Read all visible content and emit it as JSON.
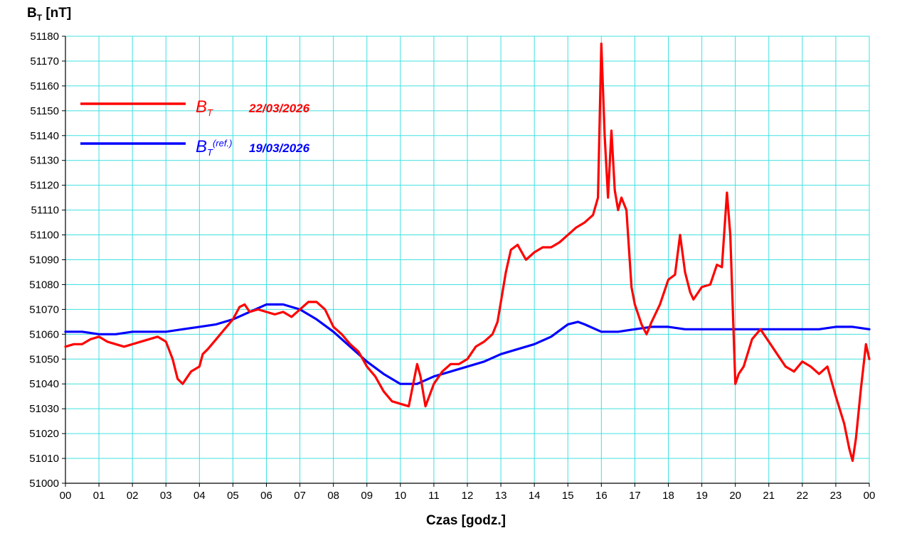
{
  "chart_data": {
    "type": "line",
    "ylabel": {
      "main": "B",
      "sub": "T",
      "unit": " [nT]"
    },
    "xlabel": "Czas [godz.]",
    "ylim": [
      51000,
      51180
    ],
    "yticks": [
      "51000",
      "51010",
      "51020",
      "51030",
      "51040",
      "51050",
      "51060",
      "51070",
      "51080",
      "51090",
      "51100",
      "51110",
      "51120",
      "51130",
      "51140",
      "51150",
      "51160",
      "51170",
      "51180"
    ],
    "xlim": [
      0,
      24
    ],
    "xticks": [
      "00",
      "01",
      "02",
      "03",
      "04",
      "05",
      "06",
      "07",
      "08",
      "09",
      "10",
      "11",
      "12",
      "13",
      "14",
      "15",
      "16",
      "17",
      "18",
      "19",
      "20",
      "21",
      "22",
      "23",
      "00"
    ],
    "grid": true,
    "grid_color": "#40E0E0",
    "legend_placement": "top-left",
    "series": [
      {
        "symbol": "B",
        "subscript": "T",
        "superscript": "",
        "date": "22/03/2026",
        "color": "#FF0000",
        "x": [
          0,
          0.25,
          0.5,
          0.75,
          1,
          1.25,
          1.5,
          1.75,
          2,
          2.25,
          2.5,
          2.75,
          3,
          3.2,
          3.35,
          3.5,
          3.6,
          3.75,
          4,
          4.1,
          4.25,
          4.5,
          4.75,
          5,
          5.2,
          5.35,
          5.5,
          5.75,
          6,
          6.25,
          6.5,
          6.75,
          7,
          7.25,
          7.5,
          7.75,
          8,
          8.25,
          8.5,
          8.75,
          9,
          9.25,
          9.5,
          9.75,
          10,
          10.25,
          10.5,
          10.6,
          10.75,
          11,
          11.25,
          11.5,
          11.75,
          12,
          12.25,
          12.5,
          12.75,
          12.9,
          13,
          13.15,
          13.3,
          13.5,
          13.75,
          14,
          14.25,
          14.5,
          14.75,
          15,
          15.25,
          15.5,
          15.75,
          15.9,
          16,
          16.1,
          16.2,
          16.3,
          16.4,
          16.5,
          16.6,
          16.75,
          16.9,
          17,
          17.1,
          17.2,
          17.35,
          17.5,
          17.75,
          18,
          18.2,
          18.35,
          18.5,
          18.65,
          18.75,
          19,
          19.25,
          19.45,
          19.6,
          19.75,
          19.85,
          19.95,
          20,
          20.1,
          20.25,
          20.5,
          20.75,
          21,
          21.25,
          21.5,
          21.75,
          22,
          22.25,
          22.5,
          22.75,
          23,
          23.25,
          23.4,
          23.5,
          23.6,
          23.75,
          23.9,
          24
        ],
        "values": [
          51055,
          51056,
          51056,
          51058,
          51059,
          51057,
          51056,
          51055,
          51056,
          51057,
          51058,
          51059,
          51057,
          51050,
          51042,
          51040,
          51042,
          51045,
          51047,
          51052,
          51054,
          51058,
          51062,
          51066,
          51071,
          51072,
          51069,
          51070,
          51069,
          51068,
          51069,
          51067,
          51070,
          51073,
          51073,
          51070,
          51063,
          51060,
          51056,
          51053,
          51047,
          51043,
          51037,
          51033,
          51032,
          51031,
          51048,
          51043,
          51031,
          51040,
          51045,
          51048,
          51048,
          51050,
          51055,
          51057,
          51060,
          51065,
          51073,
          51085,
          51094,
          51096,
          51090,
          51093,
          51095,
          51095,
          51097,
          51100,
          51103,
          51105,
          51108,
          51115,
          51177,
          51140,
          51115,
          51142,
          51118,
          51110,
          51115,
          51110,
          51079,
          51072,
          51068,
          51064,
          51060,
          51065,
          51072,
          51082,
          51084,
          51100,
          51085,
          51077,
          51074,
          51079,
          51080,
          51088,
          51087,
          51117,
          51100,
          51060,
          51040,
          51044,
          51047,
          51058,
          51062,
          51057,
          51052,
          51047,
          51045,
          51049,
          51047,
          51044,
          51047,
          51035,
          51024,
          51014,
          51009,
          51018,
          51038,
          51056,
          51050
        ]
      },
      {
        "symbol": "B",
        "subscript": "T",
        "superscript": "(ref.)",
        "date": "19/03/2026",
        "color": "#0000FF",
        "x": [
          0,
          0.5,
          1,
          1.5,
          2,
          2.5,
          3,
          3.5,
          4,
          4.5,
          5,
          5.5,
          6,
          6.5,
          7,
          7.5,
          8,
          8.5,
          9,
          9.5,
          10,
          10.5,
          11,
          11.5,
          12,
          12.5,
          13,
          13.5,
          14,
          14.5,
          15,
          15.3,
          15.5,
          16,
          16.5,
          17,
          17.5,
          18,
          18.5,
          19,
          19.5,
          20,
          20.5,
          21,
          21.5,
          22,
          22.5,
          23,
          23.5,
          24
        ],
        "values": [
          51061,
          51061,
          51060,
          51060,
          51061,
          51061,
          51061,
          51062,
          51063,
          51064,
          51066,
          51069,
          51072,
          51072,
          51070,
          51066,
          51061,
          51055,
          51049,
          51044,
          51040,
          51040,
          51043,
          51045,
          51047,
          51049,
          51052,
          51054,
          51056,
          51059,
          51064,
          51065,
          51064,
          51061,
          51061,
          51062,
          51063,
          51063,
          51062,
          51062,
          51062,
          51062,
          51062,
          51062,
          51062,
          51062,
          51062,
          51063,
          51063,
          51062
        ]
      }
    ]
  }
}
